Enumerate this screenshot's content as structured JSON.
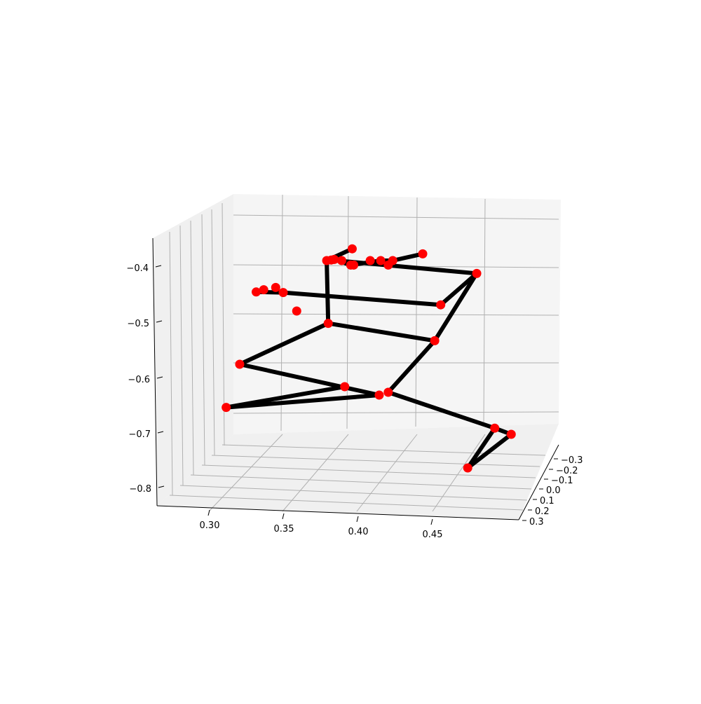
{
  "chart_data": {
    "type": "scatter",
    "projection": "3d",
    "title": "",
    "xlabel": "",
    "ylabel": "",
    "zlabel": "",
    "grid": true,
    "colors": {
      "pane": "#f5f5f5",
      "grid": "#b0b0b0",
      "bones": "#000000",
      "joints": "#ff0000"
    },
    "axes": {
      "x": {
        "ticks": [
          "0.30",
          "0.35",
          "0.40",
          "0.45"
        ]
      },
      "y": {
        "ticks": [
          "−0.3",
          "−0.2",
          "−0.1",
          "0.0",
          "0.1",
          "0.2",
          "0.3"
        ]
      },
      "z": {
        "ticks": [
          "−0.4",
          "−0.5",
          "−0.6",
          "−0.7",
          "−0.8"
        ]
      }
    },
    "joints": [
      {
        "id": "head-top",
        "x": 0.396,
        "z": -0.369
      },
      {
        "id": "face-1",
        "x": 0.379,
        "z": -0.39
      },
      {
        "id": "face-2",
        "x": 0.382,
        "z": -0.389
      },
      {
        "id": "face-3",
        "x": 0.384,
        "z": -0.388
      },
      {
        "id": "face-4",
        "x": 0.389,
        "z": -0.39
      },
      {
        "id": "face-5",
        "x": 0.395,
        "z": -0.398
      },
      {
        "id": "face-6",
        "x": 0.397,
        "z": -0.398
      },
      {
        "id": "face-7",
        "x": 0.408,
        "z": -0.39
      },
      {
        "id": "face-8",
        "x": 0.415,
        "z": -0.39
      },
      {
        "id": "face-9",
        "x": 0.42,
        "z": -0.398
      },
      {
        "id": "face-10",
        "x": 0.423,
        "z": -0.39
      },
      {
        "id": "hand-tip",
        "x": 0.443,
        "z": -0.378
      },
      {
        "id": "shoulder-upper",
        "x": 0.479,
        "z": -0.413
      },
      {
        "id": "elbow-upper",
        "x": 0.455,
        "z": -0.469
      },
      {
        "id": "hip-upper",
        "x": 0.451,
        "z": -0.533
      },
      {
        "id": "knee-upper",
        "x": 0.42,
        "z": -0.625
      },
      {
        "id": "shoulder-lower",
        "x": 0.38,
        "z": -0.502
      },
      {
        "id": "elbow-lower",
        "x": 0.321,
        "z": -0.575
      },
      {
        "id": "wrist-lower",
        "x": 0.391,
        "z": -0.615
      },
      {
        "id": "knee-lower",
        "x": 0.414,
        "z": -0.63
      },
      {
        "id": "ankle-lower",
        "x": 0.312,
        "z": -0.652
      },
      {
        "id": "hand-1",
        "x": 0.332,
        "z": -0.446
      },
      {
        "id": "hand-2",
        "x": 0.337,
        "z": -0.442
      },
      {
        "id": "hand-3",
        "x": 0.345,
        "z": -0.438
      },
      {
        "id": "hand-4",
        "x": 0.35,
        "z": -0.447
      },
      {
        "id": "hand-5",
        "x": 0.359,
        "z": -0.48
      },
      {
        "id": "ankle-upper",
        "x": 0.491,
        "z": -0.689
      },
      {
        "id": "toe-upper",
        "x": 0.502,
        "z": -0.7
      },
      {
        "id": "heel-upper",
        "x": 0.473,
        "z": -0.76
      }
    ],
    "bones": [
      [
        "head-top",
        "face-1"
      ],
      [
        "face-1",
        "face-3"
      ],
      [
        "face-3",
        "face-5"
      ],
      [
        "face-5",
        "face-8"
      ],
      [
        "face-8",
        "face-10"
      ],
      [
        "face-10",
        "hand-tip"
      ],
      [
        "face-2",
        "shoulder-upper"
      ],
      [
        "face-1",
        "shoulder-lower"
      ],
      [
        "shoulder-upper",
        "elbow-upper"
      ],
      [
        "shoulder-upper",
        "hip-upper"
      ],
      [
        "elbow-upper",
        "hand-4"
      ],
      [
        "hand-4",
        "hand-1"
      ],
      [
        "shoulder-lower",
        "hip-upper"
      ],
      [
        "shoulder-lower",
        "elbow-lower"
      ],
      [
        "elbow-lower",
        "knee-lower"
      ],
      [
        "hip-upper",
        "knee-upper"
      ],
      [
        "knee-upper",
        "ankle-upper"
      ],
      [
        "knee-lower",
        "ankle-lower"
      ],
      [
        "ankle-lower",
        "wrist-lower"
      ],
      [
        "ankle-upper",
        "toe-upper"
      ],
      [
        "toe-upper",
        "heel-upper"
      ],
      [
        "heel-upper",
        "ankle-upper"
      ]
    ]
  }
}
